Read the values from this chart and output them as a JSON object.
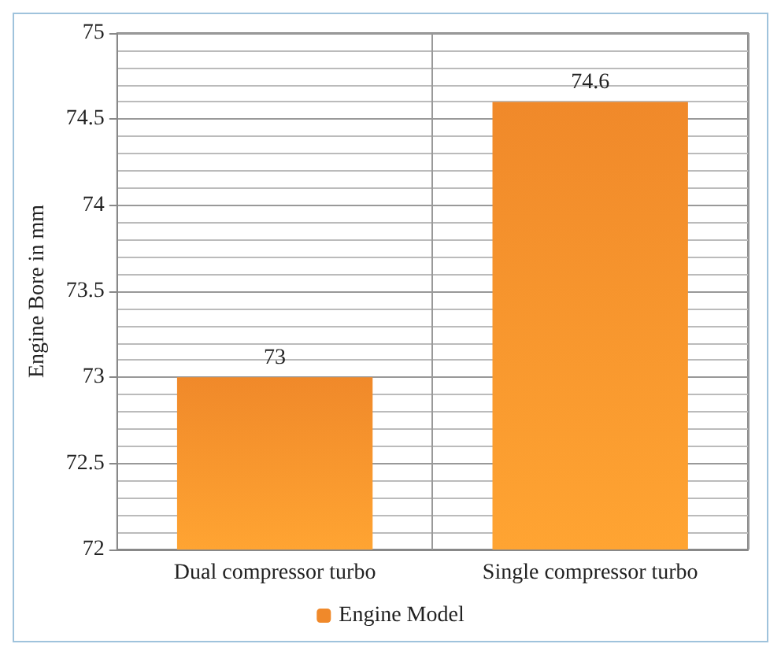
{
  "chart_data": {
    "type": "bar",
    "ylabel": "Engine Bore in mm",
    "categories": [
      "Dual compressor turbo",
      "Single compressor turbo"
    ],
    "series": [
      {
        "name": "Engine Model",
        "color": "#f0892a",
        "values": [
          73,
          74.6
        ]
      }
    ],
    "ylim": [
      72,
      75
    ],
    "yticks": [
      72,
      72.5,
      73,
      73.5,
      74,
      74.5,
      75
    ],
    "grid": true,
    "legend": "bottom",
    "data_labels": true
  }
}
